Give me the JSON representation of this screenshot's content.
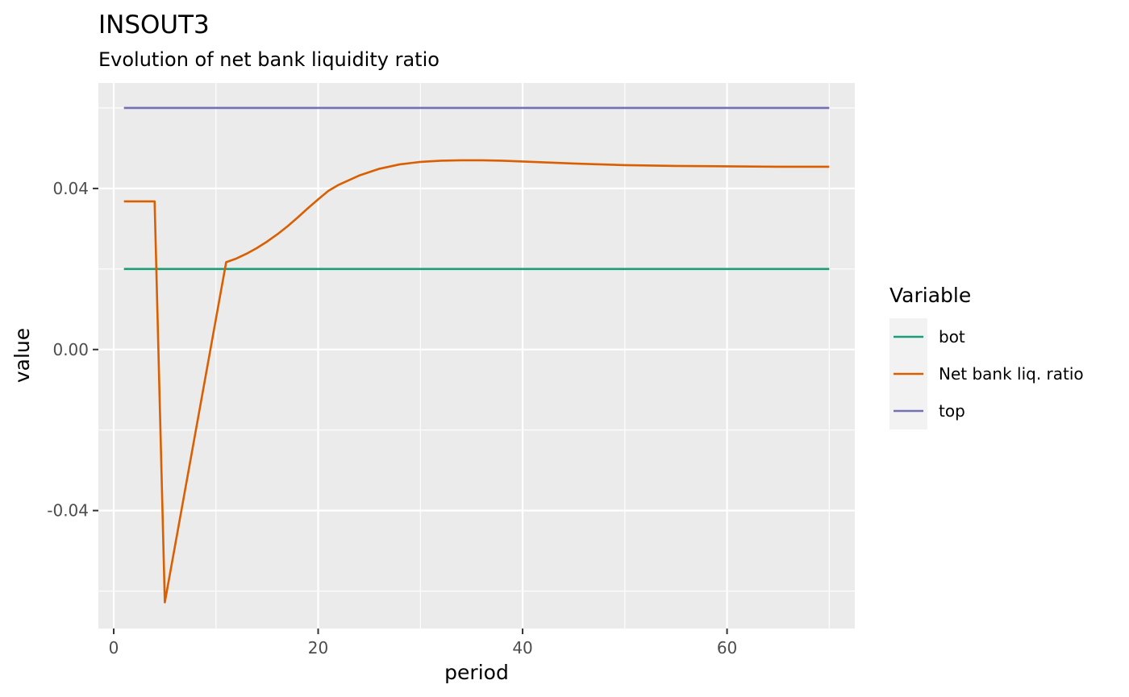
{
  "chart_data": {
    "type": "line",
    "title": "INSOUT3",
    "subtitle": "Evolution of net bank liquidity ratio",
    "xlabel": "period",
    "ylabel": "value",
    "xlim": [
      -1.5,
      72.5
    ],
    "ylim": [
      -0.0693,
      0.0662
    ],
    "x_ticks": [
      0,
      20,
      40,
      60
    ],
    "x_tick_labels": [
      "0",
      "20",
      "40",
      "60"
    ],
    "y_ticks": [
      -0.04,
      0.0,
      0.04
    ],
    "y_tick_labels": [
      "-0.04",
      "0.00",
      "0.04"
    ],
    "grid": true,
    "legend_title": "Variable",
    "legend_position": "right",
    "series": [
      {
        "name": "bot",
        "color": "#1b9e77",
        "x": [
          1,
          70
        ],
        "y": [
          0.02,
          0.02
        ]
      },
      {
        "name": "Net bank liq. ratio",
        "color": "#d95f02",
        "x": [
          1,
          2,
          3,
          4,
          5,
          11,
          12,
          13,
          14,
          15,
          16,
          17,
          18,
          19,
          20,
          21,
          22,
          24,
          26,
          28,
          30,
          32,
          34,
          36,
          38,
          40,
          45,
          50,
          55,
          60,
          65,
          70
        ],
        "y": [
          0.0368,
          0.0368,
          0.0368,
          0.0368,
          -0.0628,
          0.0217,
          0.0226,
          0.0238,
          0.0252,
          0.0268,
          0.0286,
          0.0306,
          0.0328,
          0.0351,
          0.0373,
          0.0394,
          0.0409,
          0.0432,
          0.0449,
          0.046,
          0.0466,
          0.0469,
          0.047,
          0.047,
          0.0469,
          0.0467,
          0.0462,
          0.0458,
          0.0456,
          0.0455,
          0.0454,
          0.0454
        ]
      },
      {
        "name": "top",
        "color": "#7570b3",
        "x": [
          1,
          70
        ],
        "y": [
          0.06,
          0.06
        ]
      }
    ]
  }
}
